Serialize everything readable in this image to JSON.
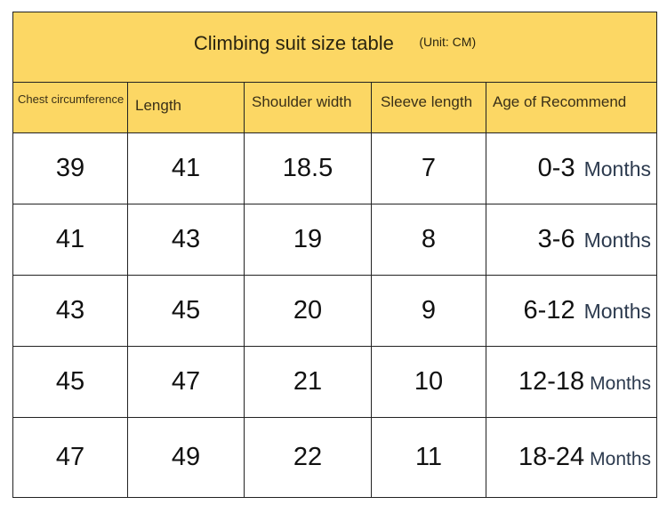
{
  "title": "Climbing suit size table",
  "unit": "(Unit: CM)",
  "colors": {
    "header_bg": "#fcd764",
    "months_text": "#2c3a4e"
  },
  "columns": [
    "Chest circumference",
    "Length",
    "Shoulder width",
    "Sleeve length",
    "Age of Recommend"
  ],
  "rows": [
    {
      "chest": "39",
      "length": "41",
      "shoulder": "18.5",
      "sleeve": "7",
      "age": "0-3",
      "age_unit": "Months"
    },
    {
      "chest": "41",
      "length": "43",
      "shoulder": "19",
      "sleeve": "8",
      "age": "3-6",
      "age_unit": "Months"
    },
    {
      "chest": "43",
      "length": "45",
      "shoulder": "20",
      "sleeve": "9",
      "age": "6-12",
      "age_unit": "Months"
    },
    {
      "chest": "45",
      "length": "47",
      "shoulder": "21",
      "sleeve": "10",
      "age": "12-18",
      "age_unit": "Months"
    },
    {
      "chest": "47",
      "length": "49",
      "shoulder": "22",
      "sleeve": "11",
      "age": "18-24",
      "age_unit": "Months"
    }
  ]
}
